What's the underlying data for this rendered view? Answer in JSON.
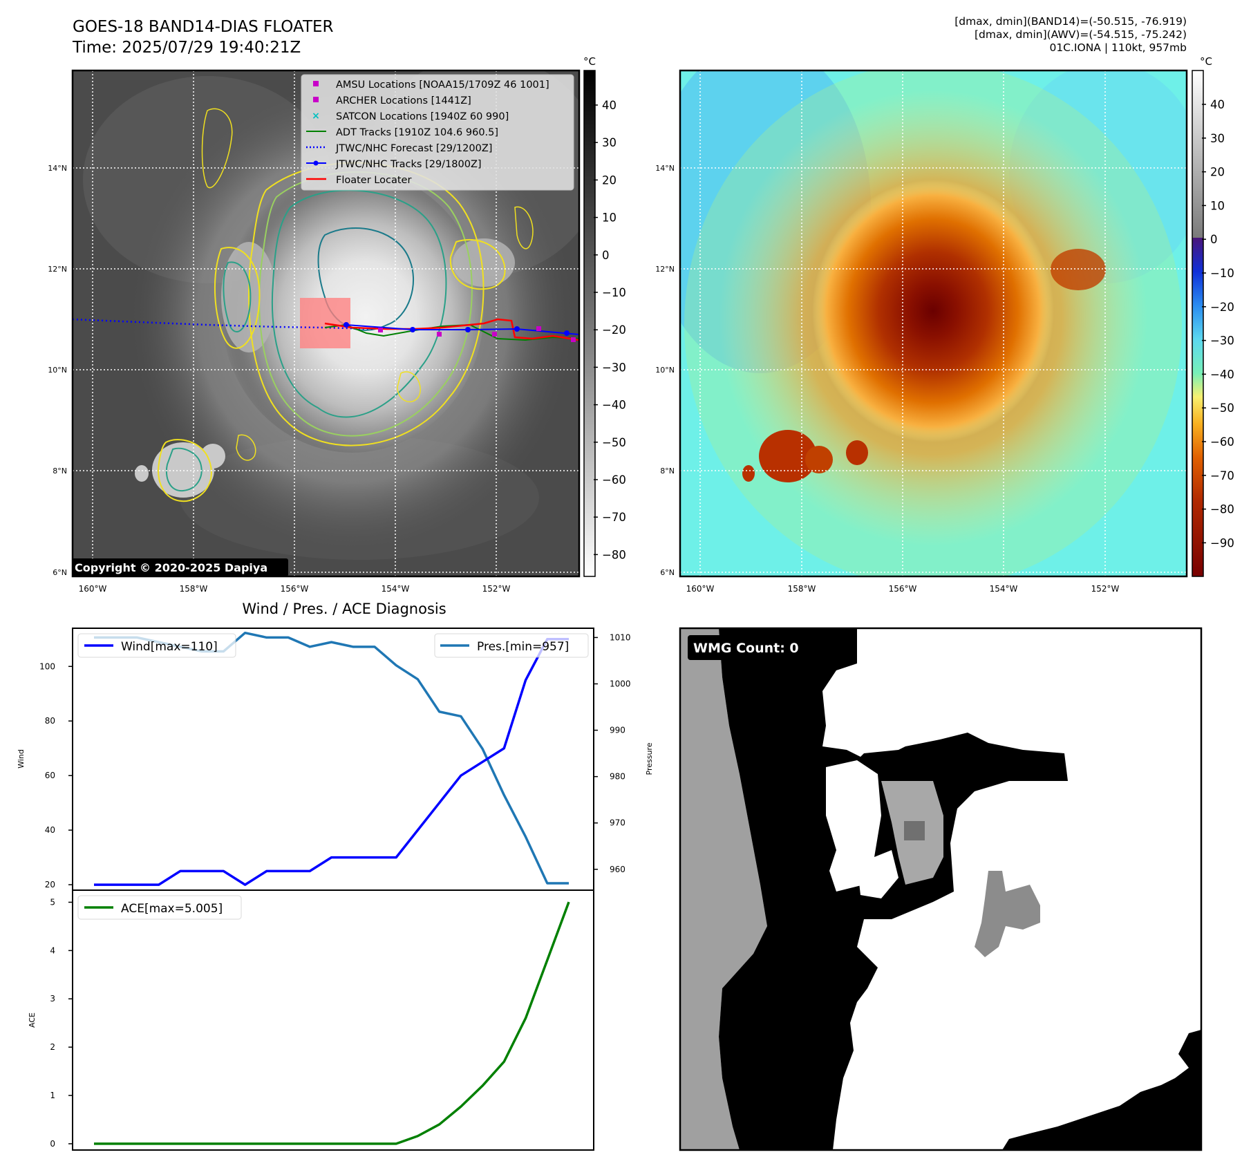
{
  "header": {
    "title": "GOES-18 BAND14-DIAS FLOATER",
    "time": "Time: 2025/07/29 19:40:21Z",
    "dmax_band14": "[dmax, dmin](BAND14)=(-50.515, -76.919)",
    "dmax_awv": "[dmax, dmin](AWV)=(-54.515, -75.242)",
    "storm": "01C.IONA | 110kt, 957mb"
  },
  "colors": {
    "amsu": "#c800c8",
    "archer": "#c800c8",
    "satcon": "#00c0c0",
    "adt": "#008000",
    "forecast": "#0000ff",
    "tracks": "#0000ff",
    "floater": "#ff0000",
    "wind": "#0000ff",
    "pressure": "#1f77b4",
    "ace": "#008000"
  },
  "map": {
    "lon_ticks": [
      "160°W",
      "158°W",
      "156°W",
      "154°W",
      "152°W"
    ],
    "lat_ticks": [
      "14°N",
      "12°N",
      "10°N",
      "8°N",
      "6°N"
    ],
    "unit": "°C",
    "gray_colorbar_ticks": [
      "40",
      "30",
      "20",
      "10",
      "0",
      "−10",
      "−20",
      "−30",
      "−40",
      "−50",
      "−60",
      "−70",
      "−80"
    ],
    "color_colorbar_ticks": [
      "40",
      "30",
      "20",
      "10",
      "0",
      "−10",
      "−20",
      "−30",
      "−40",
      "−50",
      "−60",
      "−70",
      "−80",
      "−90"
    ],
    "copyright": "Copyright © 2020-2025 Dapiya",
    "legend": [
      {
        "label": "AMSU Locations [NOAA15/1709Z 46 1001]",
        "kind": "square",
        "color_key": "amsu"
      },
      {
        "label": "ARCHER Locations [1441Z]",
        "kind": "square",
        "color_key": "archer"
      },
      {
        "label": "SATCON Locations [1940Z 60 990]",
        "kind": "x",
        "color_key": "satcon"
      },
      {
        "label": "ADT Tracks [1910Z 104.6 960.5]",
        "kind": "line",
        "color_key": "adt"
      },
      {
        "label": "JTWC/NHC Forecast [29/1200Z]",
        "kind": "dotted",
        "color_key": "forecast"
      },
      {
        "label": "JTWC/NHC Tracks [29/1800Z]",
        "kind": "line-dot",
        "color_key": "tracks"
      },
      {
        "label": "Floater Locater",
        "kind": "line",
        "color_key": "floater"
      }
    ]
  },
  "chart_data": [
    {
      "type": "line",
      "title": "Wind / Pres. / ACE Diagnosis",
      "ylabel": "Wind",
      "ylabel_right": "Pressure",
      "ylim": [
        18,
        114
      ],
      "ylim_right": [
        955.5,
        1012
      ],
      "yticks": [
        20,
        40,
        60,
        80,
        100
      ],
      "yticks_right": [
        960,
        970,
        980,
        990,
        1000,
        1010
      ],
      "legend_wind": "Wind[max=110]",
      "legend_pres": "Pres.[min=957]",
      "wind": [
        20,
        20,
        20,
        20,
        25,
        25,
        25,
        20,
        25,
        25,
        25,
        30,
        30,
        30,
        30,
        40,
        50,
        60,
        65,
        70,
        95,
        110,
        110
      ],
      "pressure": [
        1010,
        1010,
        1010,
        1009,
        1008,
        1007,
        1007,
        1011,
        1010,
        1010,
        1008,
        1009,
        1008,
        1008,
        1004,
        1001,
        994,
        993,
        986,
        976,
        967,
        957,
        957
      ]
    },
    {
      "type": "line",
      "ylabel": "ACE",
      "ylim": [
        -0.13,
        5.25
      ],
      "yticks": [
        0,
        1,
        2,
        3,
        4,
        5
      ],
      "legend_ace": "ACE[max=5.005]",
      "ace": [
        0,
        0,
        0,
        0,
        0,
        0,
        0,
        0,
        0,
        0,
        0,
        0,
        0,
        0,
        0,
        0.16,
        0.4,
        0.77,
        1.2,
        1.7,
        2.6,
        3.8,
        5.005
      ]
    }
  ],
  "wmg": {
    "label": "WMG Count: 0"
  }
}
